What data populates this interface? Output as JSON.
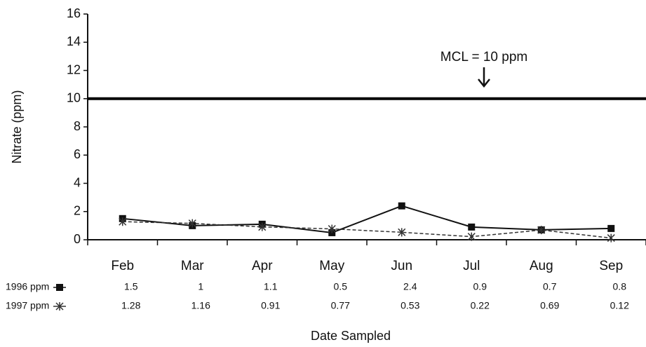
{
  "chart_data": {
    "type": "line",
    "y_label": "Nitrate (ppm)",
    "x_label": "Date Sampled",
    "annotation": "MCL = 10 ppm",
    "reference_line": 10,
    "categories": [
      "Feb",
      "Mar",
      "Apr",
      "May",
      "Jun",
      "Jul",
      "Aug",
      "Sep"
    ],
    "series": [
      {
        "name": "1996 ppm",
        "color": "#111111",
        "marker": "square",
        "dash": "solid",
        "values": [
          1.5,
          1,
          1.1,
          0.5,
          2.4,
          0.9,
          0.7,
          0.8
        ]
      },
      {
        "name": "1997 ppm",
        "color": "#333333",
        "marker": "star",
        "dash": "dashed",
        "values": [
          1.28,
          1.16,
          0.91,
          0.77,
          0.53,
          0.22,
          0.69,
          0.12
        ]
      }
    ],
    "ylim": [
      0,
      16
    ],
    "yticks": [
      0,
      2,
      4,
      6,
      8,
      10,
      12,
      14,
      16
    ],
    "grid": false
  }
}
